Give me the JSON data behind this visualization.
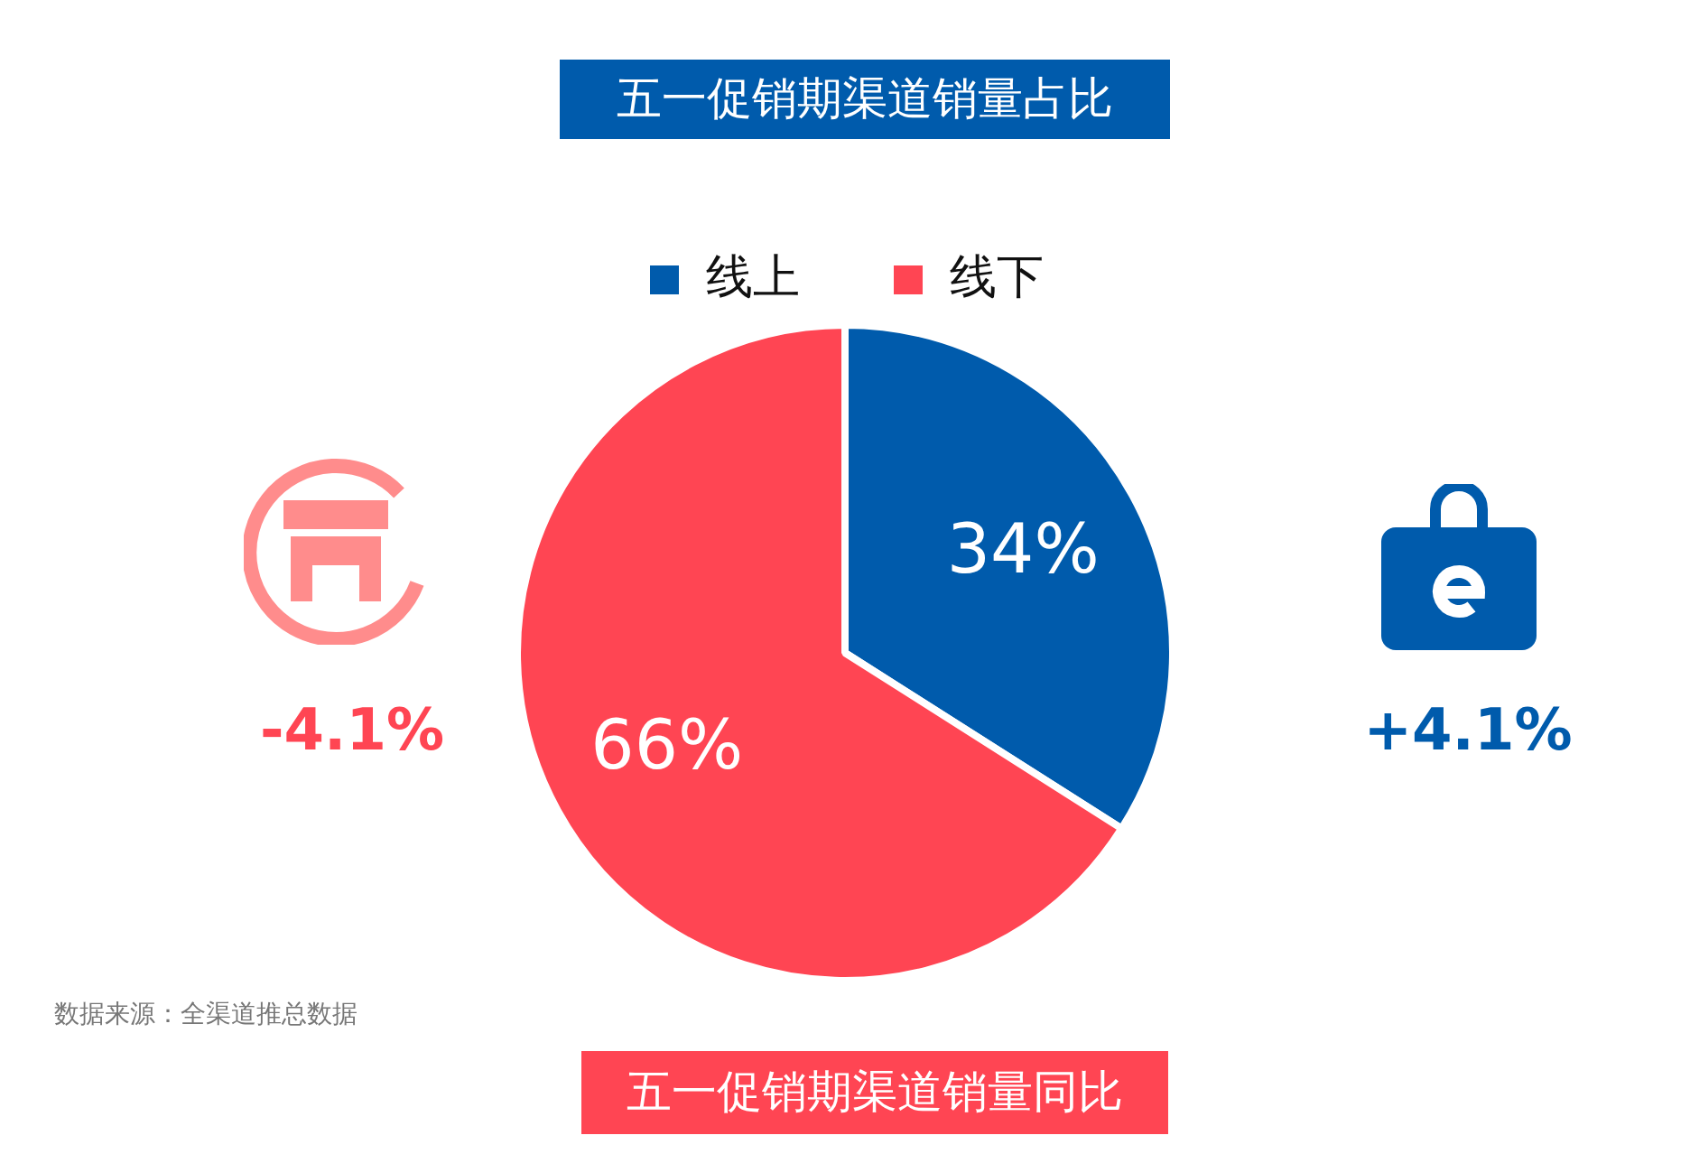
{
  "chart_data": {
    "type": "pie",
    "title": "五一促销期渠道销量占比",
    "categories": [
      "线上",
      "线下"
    ],
    "values": [
      34,
      66
    ],
    "colors": [
      "#005bac",
      "#ff4553"
    ],
    "value_labels": [
      "34%",
      "66%"
    ],
    "legend": "top",
    "annotations": [
      "-4.1%",
      "+4.1%",
      "数据来源：全渠道推总数据",
      "五一促销期渠道销量同比"
    ]
  }
}
